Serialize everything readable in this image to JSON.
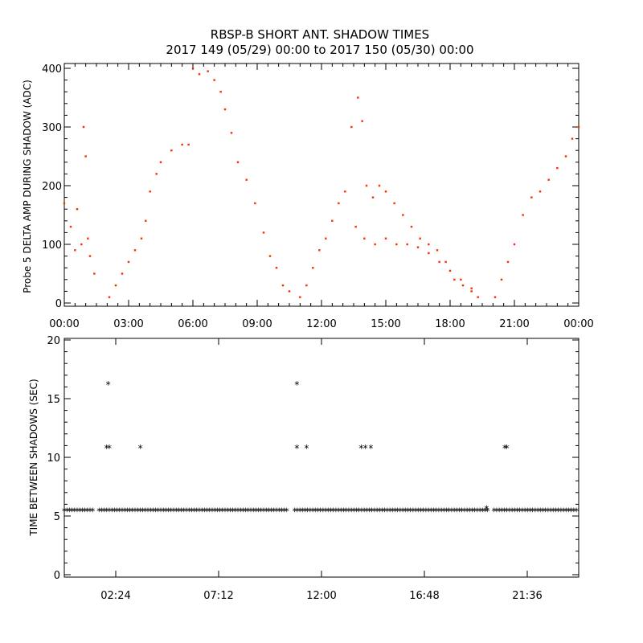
{
  "title": "RBSP-B SHORT ANT. SHADOW TIMES",
  "subtitle": "2017 149 (05/29) 00:00 to 2017 150 (05/30) 00:00",
  "chart_data": [
    {
      "type": "scatter",
      "ylabel": "Probe 5 DELTA AMP DURING SHADOW (ADC)",
      "xlabel": "",
      "xlim_hours": [
        0,
        24
      ],
      "ylim": [
        0,
        400
      ],
      "x_tick_labels": [
        "00:00",
        "03:00",
        "06:00",
        "09:00",
        "12:00",
        "15:00",
        "18:00",
        "21:00",
        "00:00"
      ],
      "y_tick_labels": [
        "0",
        "100",
        "200",
        "300",
        "400"
      ],
      "marker_color": "#ff2a00",
      "series": [
        {
          "x_hours": [
            0.0,
            0.3,
            0.6,
            0.9,
            1.0,
            1.1,
            1.4,
            0.5,
            0.8,
            1.2,
            2.1,
            2.4,
            2.7,
            3.0,
            3.3,
            3.6,
            3.8,
            4.0,
            4.3,
            4.5,
            5.0,
            5.5,
            5.8,
            6.0,
            6.3,
            6.7,
            7.0,
            7.3,
            7.5,
            7.8,
            8.1,
            8.5,
            8.9,
            9.3,
            9.6,
            9.9,
            10.2,
            10.5,
            11.0,
            11.3,
            11.6,
            11.9,
            12.2,
            12.5,
            12.8,
            13.1,
            13.4,
            13.7,
            13.9,
            14.1,
            14.4,
            14.7,
            15.0,
            15.4,
            15.8,
            16.2,
            16.6,
            17.0,
            17.4,
            17.8,
            18.2,
            18.6,
            19.0,
            19.3,
            20.1,
            20.4,
            20.7,
            21.0,
            21.4,
            21.8,
            22.2,
            22.6,
            23.0,
            23.4,
            23.7,
            24.0
          ],
          "y": [
            170,
            130,
            160,
            300,
            250,
            110,
            50,
            90,
            100,
            80,
            10,
            30,
            50,
            70,
            90,
            110,
            140,
            190,
            220,
            240,
            260,
            270,
            270,
            400,
            390,
            395,
            380,
            360,
            330,
            290,
            240,
            210,
            170,
            120,
            80,
            60,
            30,
            20,
            10,
            30,
            60,
            90,
            110,
            140,
            170,
            190,
            300,
            350,
            310,
            200,
            180,
            200,
            190,
            170,
            150,
            130,
            110,
            100,
            90,
            70,
            40,
            30,
            20,
            10,
            10,
            40,
            70,
            100,
            150,
            180,
            190,
            210,
            230,
            250,
            280,
            300
          ]
        },
        {
          "x_hours": [
            13.6,
            14.0,
            14.5,
            15.0,
            15.5,
            16.0,
            16.5,
            17.0,
            17.5,
            18.0,
            18.5,
            19.0
          ],
          "y": [
            130,
            110,
            100,
            110,
            100,
            100,
            95,
            85,
            70,
            55,
            40,
            25
          ]
        }
      ]
    },
    {
      "type": "scatter",
      "ylabel": "TIME BETWEEN SHADOWS (SEC)",
      "xlabel": "",
      "xlim_hours": [
        0,
        24
      ],
      "ylim": [
        0,
        20
      ],
      "x_tick_labels": [
        "02:24",
        "07:12",
        "12:00",
        "16:48",
        "21:36"
      ],
      "y_tick_labels": [
        "0",
        "5",
        "10",
        "15",
        "20"
      ],
      "marker_color": "#000000",
      "marker_symbol": "*",
      "baseline": {
        "y": 5.4,
        "segments_hours": [
          [
            0.0,
            1.42
          ],
          [
            1.62,
            10.43
          ],
          [
            10.75,
            19.77
          ],
          [
            20.05,
            24.0
          ]
        ]
      },
      "points": [
        {
          "x_hours": 1.97,
          "y": 10.8
        },
        {
          "x_hours": 2.05,
          "y": 16.2
        },
        {
          "x_hours": 2.1,
          "y": 10.8
        },
        {
          "x_hours": 3.55,
          "y": 10.8
        },
        {
          "x_hours": 10.85,
          "y": 16.2
        },
        {
          "x_hours": 10.85,
          "y": 10.8
        },
        {
          "x_hours": 11.3,
          "y": 10.8
        },
        {
          "x_hours": 13.85,
          "y": 10.8
        },
        {
          "x_hours": 14.05,
          "y": 10.8
        },
        {
          "x_hours": 14.3,
          "y": 10.8
        },
        {
          "x_hours": 19.7,
          "y": 5.6
        },
        {
          "x_hours": 20.55,
          "y": 10.8
        },
        {
          "x_hours": 20.65,
          "y": 10.8
        }
      ]
    }
  ]
}
